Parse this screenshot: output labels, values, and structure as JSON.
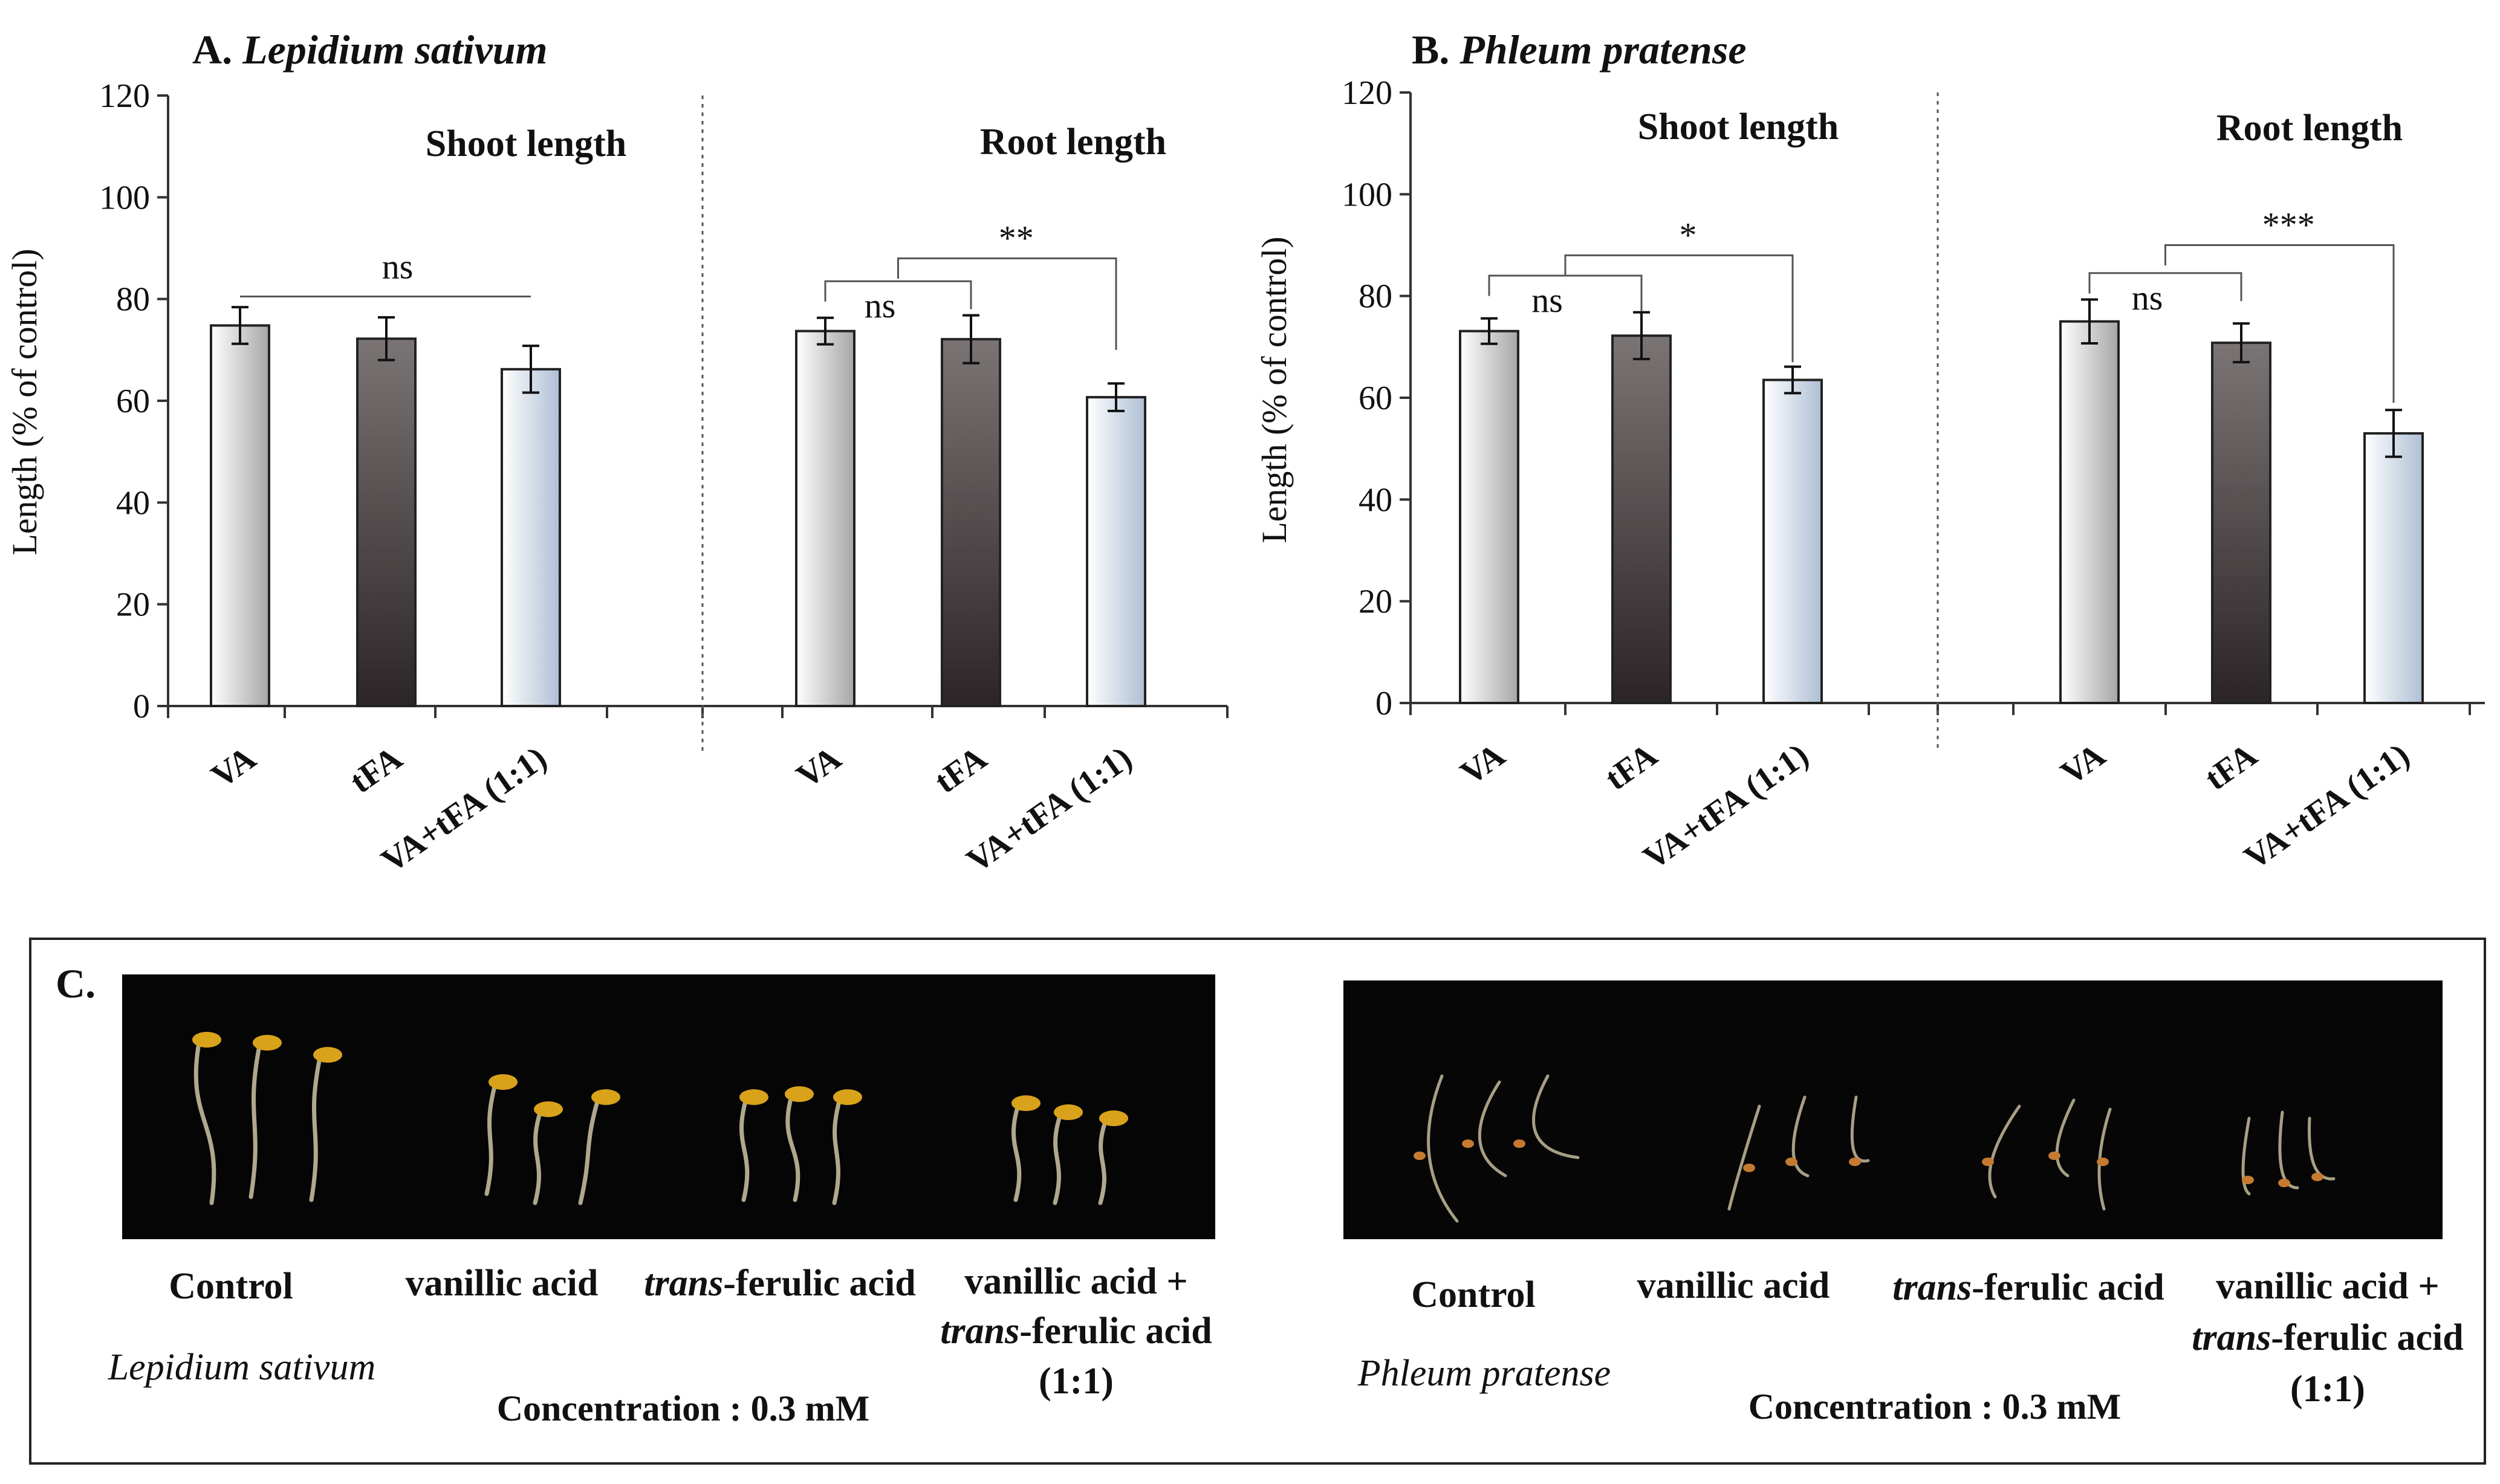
{
  "colors": {
    "va_grad": [
      "#ffffff",
      "#a6a6a6"
    ],
    "tfa_grad": [
      "#7a7474",
      "#2b2527"
    ],
    "mix_grad": [
      "#ffffff",
      "#aebfd4"
    ],
    "photo_bg": "#050505",
    "cotyledon": "#d9a21b",
    "stem": "#cfc6a5",
    "seed": "#c67a30"
  },
  "chart_data": [
    {
      "type": "bar",
      "panel": "A",
      "title_prefix": "A.",
      "title_species": "Lepidium sativum",
      "ylabel": "Length (% of control)",
      "ylim": [
        0,
        120
      ],
      "yticks": [
        "0",
        "20",
        "40",
        "60",
        "80",
        "100",
        "120"
      ],
      "groups": [
        {
          "label": "Shoot length",
          "categories": [
            "VA",
            "tFA",
            "VA+tFA (1:1)"
          ],
          "values": [
            74.8,
            72.2,
            66.2
          ],
          "errors": [
            3.6,
            4.2,
            4.6
          ],
          "annotations": [
            {
              "text": "ns",
              "from": 0,
              "to": 2,
              "bracket_y": 80.5,
              "type": "line"
            }
          ]
        },
        {
          "label": "Root length",
          "categories": [
            "VA",
            "tFA",
            "VA+tFA (1:1)"
          ],
          "values": [
            73.7,
            72.1,
            60.7
          ],
          "errors": [
            2.6,
            4.7,
            2.7
          ],
          "annotations": [
            {
              "text": "ns",
              "from": 0,
              "to": 1,
              "bracket_y": 83.5,
              "drop_to": 78,
              "type": "bracket"
            },
            {
              "text": "**",
              "from": 0.5,
              "to": 2,
              "bracket_y": 88,
              "drop_to": 70,
              "type": "bracket"
            }
          ]
        }
      ]
    },
    {
      "type": "bar",
      "panel": "B",
      "title_prefix": "B.",
      "title_species": "Phleum pratense",
      "ylabel": "Length (% of control)",
      "ylim": [
        0,
        120
      ],
      "yticks": [
        "0",
        "20",
        "40",
        "60",
        "80",
        "100",
        "120"
      ],
      "groups": [
        {
          "label": "Shoot length",
          "categories": [
            "VA",
            "tFA",
            "VA+tFA (1:1)"
          ],
          "values": [
            73.1,
            72.2,
            63.5
          ],
          "errors": [
            2.5,
            4.6,
            2.6
          ],
          "annotations": [
            {
              "text": "ns",
              "from": 0,
              "to": 1,
              "bracket_y": 84,
              "drop_to": 77,
              "type": "bracket"
            },
            {
              "text": "*",
              "from": 0.5,
              "to": 2,
              "bracket_y": 88,
              "drop_to": 67,
              "type": "bracket"
            }
          ]
        },
        {
          "label": "Root length",
          "categories": [
            "VA",
            "tFA",
            "VA+tFA (1:1)"
          ],
          "values": [
            75.0,
            70.8,
            53.0
          ],
          "errors": [
            4.3,
            3.8,
            4.6
          ],
          "annotations": [
            {
              "text": "ns",
              "from": 0,
              "to": 1,
              "bracket_y": 84.5,
              "drop_to": 79,
              "type": "bracket"
            },
            {
              "text": "***",
              "from": 0.5,
              "to": 2,
              "bracket_y": 90,
              "drop_to": 59,
              "type": "bracket"
            }
          ]
        }
      ]
    }
  ],
  "photos": {
    "label": "C.",
    "left": {
      "species": "Lepidium sativum",
      "captions": [
        {
          "lines": [
            "Control"
          ]
        },
        {
          "lines": [
            "vanillic acid"
          ]
        },
        {
          "prefix": "trans",
          "rest": "-ferulic acid"
        },
        {
          "lines": [
            "vanillic acid +"
          ],
          "prefix": "trans",
          "rest": "-ferulic acid",
          "tail": "(1:1)"
        }
      ],
      "concentration": "Concentration : 0.3 mM"
    },
    "right": {
      "species": "Phleum pratense",
      "captions": [
        {
          "lines": [
            "Control"
          ]
        },
        {
          "lines": [
            "vanillic acid"
          ]
        },
        {
          "prefix": "trans",
          "rest": "-ferulic acid"
        },
        {
          "lines": [
            "vanillic acid +"
          ],
          "prefix": "trans",
          "rest": "-ferulic acid",
          "tail": "(1:1)"
        }
      ],
      "concentration": "Concentration : 0.3 mM"
    }
  }
}
